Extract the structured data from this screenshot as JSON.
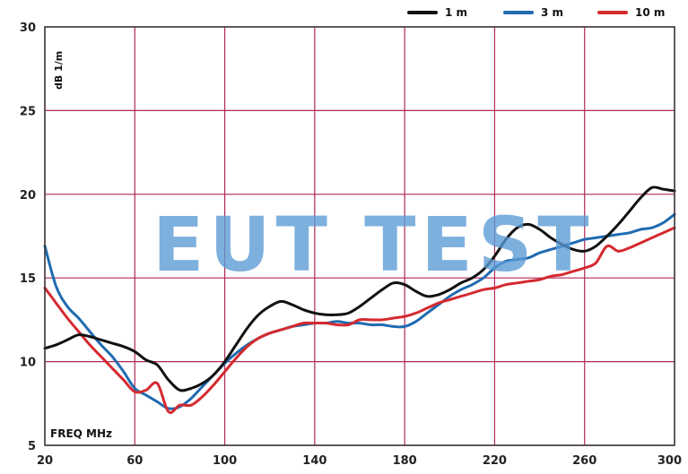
{
  "chart_data": {
    "type": "line",
    "xlabel": "FREQ MHz",
    "ylabel": "dB 1/m",
    "xlim": [
      20,
      300
    ],
    "ylim": [
      5,
      30
    ],
    "x_ticks": [
      20,
      60,
      100,
      140,
      180,
      220,
      260,
      300
    ],
    "y_ticks": [
      5,
      10,
      15,
      20,
      25,
      30
    ],
    "x_ticks_labels": [
      "20",
      "60",
      "100",
      "140",
      "180",
      "220",
      "260",
      "300"
    ],
    "y_ticks_labels": [
      "5",
      "10",
      "15",
      "20",
      "25",
      "30"
    ],
    "grid": true,
    "legend_position": "top-right",
    "watermark": "EUT TEST",
    "series": [
      {
        "name": "1 m",
        "color": "#111111",
        "x": [
          20,
          25,
          30,
          35,
          40,
          45,
          50,
          55,
          60,
          65,
          70,
          75,
          80,
          85,
          90,
          95,
          100,
          105,
          110,
          115,
          120,
          125,
          130,
          135,
          140,
          145,
          150,
          155,
          160,
          165,
          170,
          175,
          180,
          185,
          190,
          195,
          200,
          205,
          210,
          215,
          220,
          225,
          230,
          235,
          240,
          245,
          250,
          255,
          260,
          265,
          270,
          275,
          280,
          285,
          290,
          295,
          300
        ],
        "y": [
          10.8,
          11.0,
          11.3,
          11.6,
          11.5,
          11.3,
          11.1,
          10.9,
          10.6,
          10.1,
          9.8,
          8.9,
          8.3,
          8.4,
          8.7,
          9.2,
          10.0,
          11.0,
          12.0,
          12.8,
          13.3,
          13.6,
          13.4,
          13.1,
          12.9,
          12.8,
          12.8,
          12.9,
          13.3,
          13.8,
          14.3,
          14.7,
          14.6,
          14.2,
          13.9,
          14.0,
          14.3,
          14.7,
          15.0,
          15.5,
          16.3,
          17.3,
          18.0,
          18.2,
          17.9,
          17.4,
          17.0,
          16.7,
          16.6,
          16.9,
          17.5,
          18.2,
          19.0,
          19.8,
          20.4,
          20.3,
          20.2
        ]
      },
      {
        "name": "3 m",
        "color": "#1f6bb0",
        "x": [
          20,
          25,
          30,
          35,
          40,
          45,
          50,
          55,
          60,
          65,
          70,
          75,
          80,
          85,
          90,
          95,
          100,
          105,
          110,
          115,
          120,
          125,
          130,
          135,
          140,
          145,
          150,
          155,
          160,
          165,
          170,
          175,
          180,
          185,
          190,
          195,
          200,
          205,
          210,
          215,
          220,
          225,
          230,
          235,
          240,
          245,
          250,
          255,
          260,
          265,
          270,
          275,
          280,
          285,
          290,
          295,
          300
        ],
        "y": [
          16.9,
          14.5,
          13.3,
          12.6,
          11.8,
          11.0,
          10.3,
          9.4,
          8.4,
          8.0,
          7.6,
          7.2,
          7.3,
          7.8,
          8.5,
          9.2,
          9.9,
          10.5,
          11.0,
          11.4,
          11.7,
          11.9,
          12.1,
          12.2,
          12.3,
          12.3,
          12.4,
          12.3,
          12.3,
          12.2,
          12.2,
          12.1,
          12.1,
          12.4,
          12.9,
          13.4,
          13.9,
          14.3,
          14.6,
          15.0,
          15.6,
          16.0,
          16.1,
          16.2,
          16.5,
          16.7,
          16.9,
          17.1,
          17.3,
          17.4,
          17.5,
          17.6,
          17.7,
          17.9,
          18.0,
          18.3,
          18.8
        ]
      },
      {
        "name": "10 m",
        "color": "#d42a2f",
        "x": [
          20,
          25,
          30,
          35,
          40,
          45,
          50,
          55,
          60,
          65,
          70,
          75,
          80,
          85,
          90,
          95,
          100,
          105,
          110,
          115,
          120,
          125,
          130,
          135,
          140,
          145,
          150,
          155,
          160,
          165,
          170,
          175,
          180,
          185,
          190,
          195,
          200,
          205,
          210,
          215,
          220,
          225,
          230,
          235,
          240,
          245,
          250,
          255,
          260,
          265,
          270,
          275,
          280,
          285,
          290,
          295,
          300
        ],
        "y": [
          14.4,
          13.5,
          12.6,
          11.8,
          11.0,
          10.3,
          9.6,
          8.9,
          8.2,
          8.3,
          8.7,
          7.0,
          7.4,
          7.4,
          7.9,
          8.6,
          9.4,
          10.2,
          10.9,
          11.4,
          11.7,
          11.9,
          12.1,
          12.3,
          12.3,
          12.3,
          12.2,
          12.2,
          12.5,
          12.5,
          12.5,
          12.6,
          12.7,
          12.9,
          13.2,
          13.5,
          13.7,
          13.9,
          14.1,
          14.3,
          14.4,
          14.6,
          14.7,
          14.8,
          14.9,
          15.1,
          15.2,
          15.4,
          15.6,
          15.9,
          16.9,
          16.6,
          16.8,
          17.1,
          17.4,
          17.7,
          18.0
        ]
      }
    ]
  }
}
